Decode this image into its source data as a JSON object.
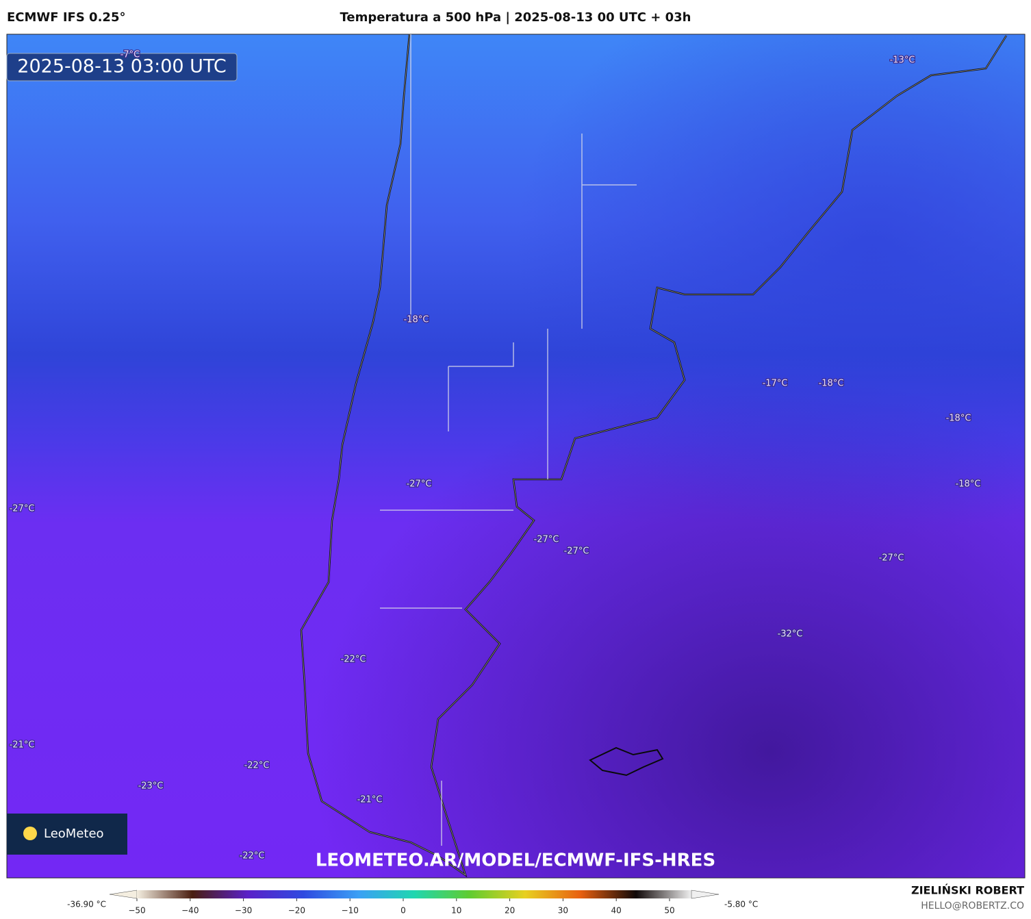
{
  "header": {
    "model": "ECMWF IFS 0.25°",
    "title": "Temperatura a 500 hPa | 2025-08-13 00 UTC + 03h"
  },
  "map": {
    "timestamp": "2025-08-13 03:00 UTC",
    "watermark": "LEOMETEO.AR/MODEL/ECMWF-IFS-HRES",
    "logo": "LeoMeteo",
    "contour_labels": [
      "-7°C",
      "-13°C",
      "-18°C",
      "-17°C",
      "-18°C",
      "-18°C",
      "-18°C",
      "-27°C",
      "-27°C",
      "-27°C",
      "-27°C",
      "-27°C",
      "-32°C",
      "-22°C",
      "-21°C",
      "-22°C",
      "-23°C",
      "-21°C",
      "-22°C"
    ]
  },
  "colorbar": {
    "min_label": "-36.90 °C",
    "max_label": "-5.80 °C",
    "ticks": [
      {
        "value": -50,
        "label": "−50"
      },
      {
        "value": -40,
        "label": "−40"
      },
      {
        "value": -30,
        "label": "−30"
      },
      {
        "value": -20,
        "label": "−20"
      },
      {
        "value": -10,
        "label": "−10"
      },
      0,
      10,
      20,
      30,
      40,
      50
    ]
  },
  "footer": {
    "author": "ZIELIŃSKI ROBERT",
    "email": "HELLO@ROBERTZ.CO"
  }
}
